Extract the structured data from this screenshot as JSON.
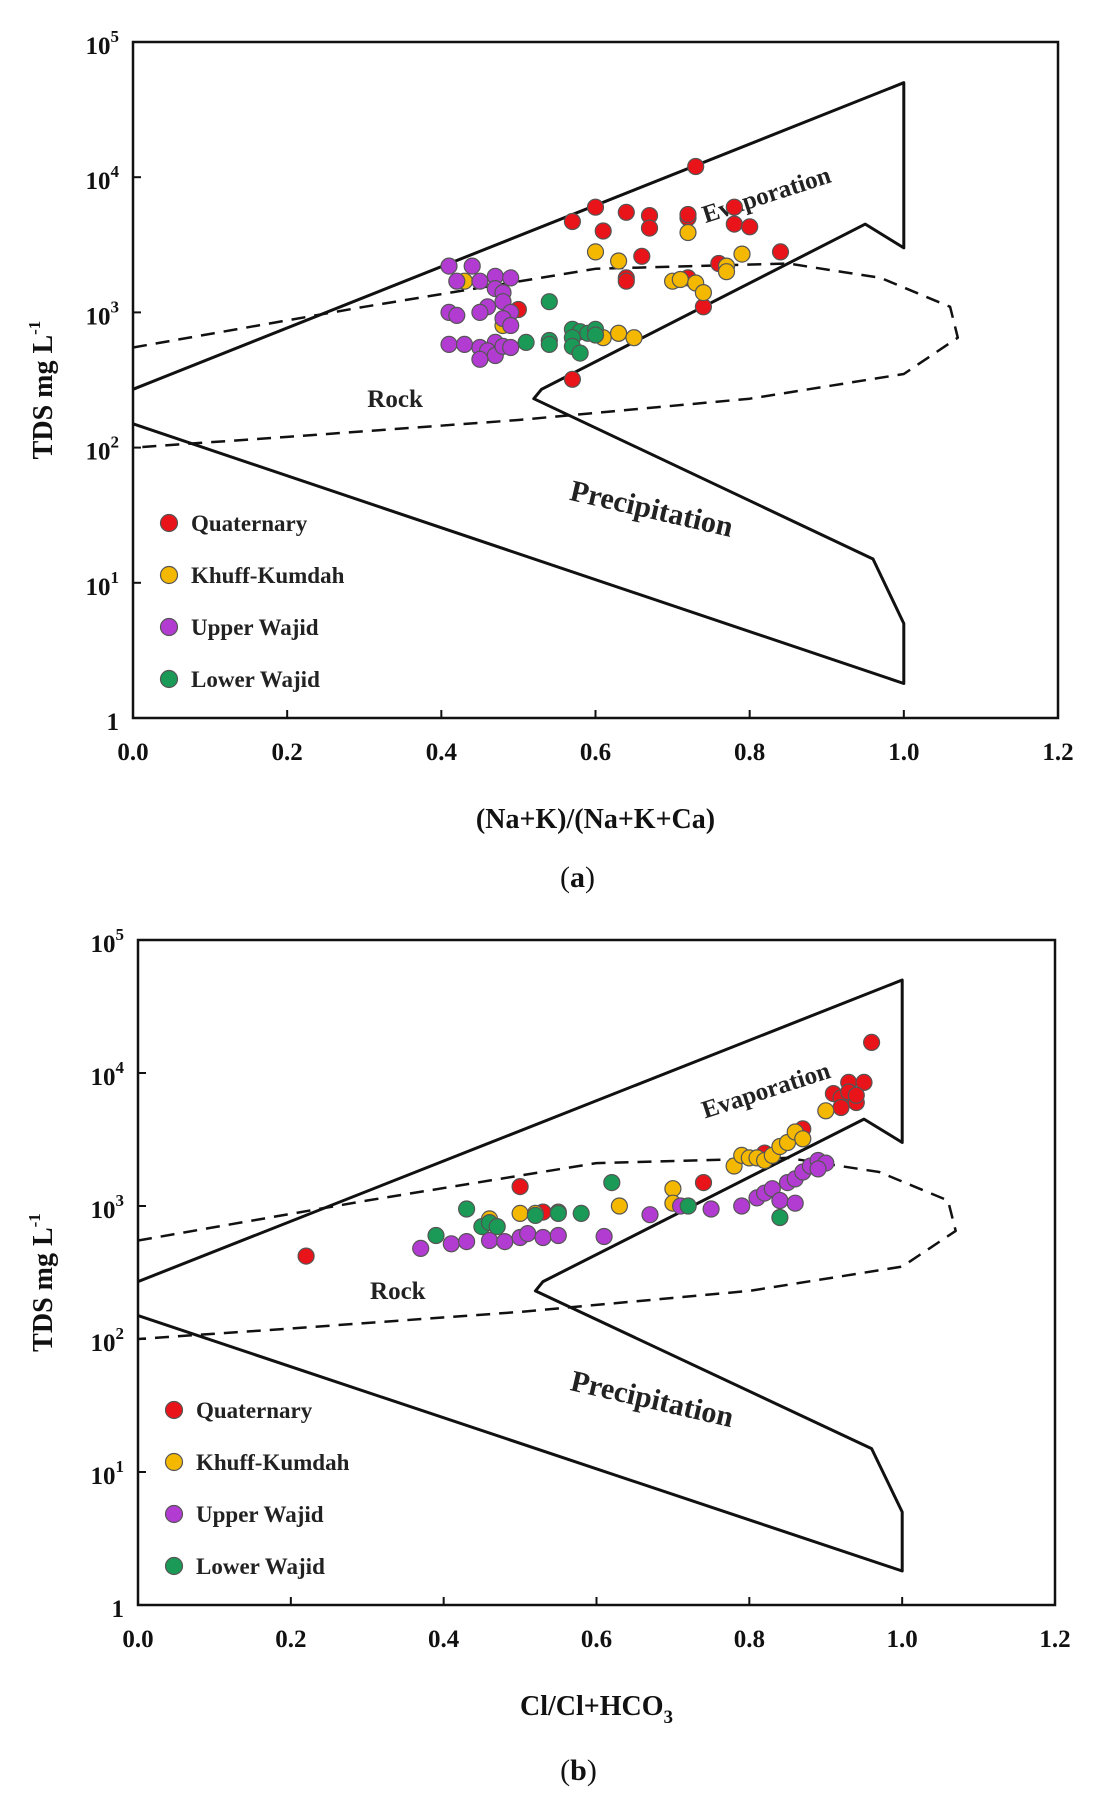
{
  "chart_data": [
    {
      "type": "scatter",
      "panel_label": "a",
      "xlabel": "(Na+K)/(Na+K+Ca)",
      "ylabel": "TDS mg L",
      "ylabel_sup": "-1",
      "xlim": [
        0,
        1.2
      ],
      "ylim": [
        1,
        100000
      ],
      "yscale": "log",
      "x_ticks": [
        "0.0",
        "0.2",
        "0.4",
        "0.6",
        "0.8",
        "1.0",
        "1.2"
      ],
      "y_ticks": [
        {
          "base": "1",
          "exp": ""
        },
        {
          "base": "10",
          "exp": "1"
        },
        {
          "base": "10",
          "exp": "2"
        },
        {
          "base": "10",
          "exp": "3"
        },
        {
          "base": "10",
          "exp": "4"
        },
        {
          "base": "10",
          "exp": "5"
        }
      ],
      "regions": {
        "evaporation": "Evaporation",
        "rock": "Rock",
        "precipitation": "Precipitation"
      },
      "boomerang": [
        [
          0,
          270
        ],
        [
          1.0,
          50000
        ],
        [
          1.0,
          3000
        ],
        [
          0.95,
          4500
        ],
        [
          0.53,
          270
        ],
        [
          0.52,
          230
        ],
        [
          0.96,
          15
        ],
        [
          1.0,
          5
        ],
        [
          1.0,
          1.8
        ],
        [
          0,
          150
        ]
      ],
      "rock_zone": [
        [
          0,
          550
        ],
        [
          0.3,
          1100
        ],
        [
          0.6,
          2100
        ],
        [
          0.85,
          2300
        ],
        [
          0.97,
          1800
        ],
        [
          1.06,
          1100
        ],
        [
          1.07,
          650
        ],
        [
          1.0,
          350
        ],
        [
          0.8,
          230
        ],
        [
          0.5,
          160
        ],
        [
          0.2,
          120
        ],
        [
          0,
          100
        ]
      ],
      "legend": [
        "Quaternary",
        "Khuff-Kumdah",
        "Upper Wajid",
        "Lower Wajid"
      ],
      "series": [
        {
          "name": "Quaternary",
          "color": "#e8141a",
          "points": [
            [
              0.73,
              12000
            ],
            [
              0.57,
              4700
            ],
            [
              0.6,
              6000
            ],
            [
              0.64,
              5500
            ],
            [
              0.61,
              4000
            ],
            [
              0.67,
              5200
            ],
            [
              0.67,
              4200
            ],
            [
              0.72,
              5000
            ],
            [
              0.72,
              5300
            ],
            [
              0.78,
              6000
            ],
            [
              0.78,
              4500
            ],
            [
              0.8,
              4300
            ],
            [
              0.84,
              2800
            ],
            [
              0.66,
              2600
            ],
            [
              0.64,
              1800
            ],
            [
              0.64,
              1700
            ],
            [
              0.76,
              2300
            ],
            [
              0.72,
              1800
            ],
            [
              0.74,
              1100
            ],
            [
              0.5,
              1050
            ],
            [
              0.63,
              700
            ],
            [
              0.57,
              320
            ]
          ]
        },
        {
          "name": "Khuff-Kumdah",
          "color": "#f5b800",
          "points": [
            [
              0.72,
              3900
            ],
            [
              0.6,
              2800
            ],
            [
              0.63,
              2400
            ],
            [
              0.79,
              2700
            ],
            [
              0.77,
              2200
            ],
            [
              0.77,
              2000
            ],
            [
              0.43,
              1700
            ],
            [
              0.7,
              1700
            ],
            [
              0.71,
              1750
            ],
            [
              0.73,
              1650
            ],
            [
              0.74,
              1400
            ],
            [
              0.48,
              800
            ],
            [
              0.61,
              650
            ],
            [
              0.63,
              700
            ],
            [
              0.65,
              650
            ]
          ]
        },
        {
          "name": "Upper Wajid",
          "color": "#b23cd2",
          "points": [
            [
              0.41,
              2200
            ],
            [
              0.44,
              2200
            ],
            [
              0.42,
              1700
            ],
            [
              0.45,
              1700
            ],
            [
              0.47,
              1850
            ],
            [
              0.49,
              1800
            ],
            [
              0.47,
              1500
            ],
            [
              0.48,
              1400
            ],
            [
              0.46,
              1100
            ],
            [
              0.45,
              1000
            ],
            [
              0.48,
              1200
            ],
            [
              0.49,
              1000
            ],
            [
              0.41,
              1000
            ],
            [
              0.42,
              950
            ],
            [
              0.48,
              900
            ],
            [
              0.49,
              800
            ],
            [
              0.41,
              580
            ],
            [
              0.43,
              580
            ],
            [
              0.45,
              550
            ],
            [
              0.47,
              600
            ],
            [
              0.46,
              520
            ],
            [
              0.47,
              480
            ],
            [
              0.48,
              560
            ],
            [
              0.49,
              550
            ],
            [
              0.45,
              450
            ]
          ]
        },
        {
          "name": "Lower Wajid",
          "color": "#1a9a56",
          "points": [
            [
              0.54,
              1200
            ],
            [
              0.51,
              600
            ],
            [
              0.54,
              620
            ],
            [
              0.54,
              580
            ],
            [
              0.57,
              750
            ],
            [
              0.58,
              720
            ],
            [
              0.57,
              650
            ],
            [
              0.59,
              700
            ],
            [
              0.6,
              750
            ],
            [
              0.6,
              680
            ],
            [
              0.57,
              560
            ],
            [
              0.58,
              500
            ]
          ]
        }
      ]
    },
    {
      "type": "scatter",
      "panel_label": "b",
      "xlabel": "Cl/Cl+HCO",
      "xlabel_sub": "3",
      "ylabel": "TDS mg L",
      "ylabel_sup": "-1",
      "xlim": [
        0,
        1.2
      ],
      "ylim": [
        1,
        100000
      ],
      "yscale": "log",
      "x_ticks": [
        "0.0",
        "0.2",
        "0.4",
        "0.6",
        "0.8",
        "1.0",
        "1.2"
      ],
      "y_ticks": [
        {
          "base": "1",
          "exp": ""
        },
        {
          "base": "10",
          "exp": "1"
        },
        {
          "base": "10",
          "exp": "2"
        },
        {
          "base": "10",
          "exp": "3"
        },
        {
          "base": "10",
          "exp": "4"
        },
        {
          "base": "10",
          "exp": "5"
        }
      ],
      "regions": {
        "evaporation": "Evaporation",
        "rock": "Rock",
        "precipitation": "Precipitation"
      },
      "boomerang": [
        [
          0,
          270
        ],
        [
          1.0,
          50000
        ],
        [
          1.0,
          3000
        ],
        [
          0.95,
          4500
        ],
        [
          0.53,
          270
        ],
        [
          0.52,
          230
        ],
        [
          0.96,
          15
        ],
        [
          1.0,
          5
        ],
        [
          1.0,
          1.8
        ],
        [
          0,
          150
        ]
      ],
      "rock_zone": [
        [
          0,
          550
        ],
        [
          0.3,
          1100
        ],
        [
          0.6,
          2100
        ],
        [
          0.85,
          2300
        ],
        [
          0.97,
          1800
        ],
        [
          1.06,
          1100
        ],
        [
          1.07,
          650
        ],
        [
          1.0,
          350
        ],
        [
          0.8,
          230
        ],
        [
          0.5,
          160
        ],
        [
          0.2,
          120
        ],
        [
          0,
          100
        ]
      ],
      "legend": [
        "Quaternary",
        "Khuff-Kumdah",
        "Upper Wajid",
        "Lower Wajid"
      ],
      "series": [
        {
          "name": "Quaternary",
          "color": "#e8141a",
          "points": [
            [
              0.22,
              420
            ],
            [
              0.5,
              1400
            ],
            [
              0.53,
              900
            ],
            [
              0.74,
              1500
            ],
            [
              0.82,
              2500
            ],
            [
              0.87,
              3800
            ],
            [
              0.91,
              7000
            ],
            [
              0.92,
              6500
            ],
            [
              0.93,
              8500
            ],
            [
              0.93,
              7200
            ],
            [
              0.94,
              6000
            ],
            [
              0.92,
              5500
            ],
            [
              0.95,
              8500
            ],
            [
              0.96,
              17000
            ],
            [
              0.94,
              6800
            ]
          ]
        },
        {
          "name": "Khuff-Kumdah",
          "color": "#f5b800",
          "points": [
            [
              0.46,
              800
            ],
            [
              0.5,
              880
            ],
            [
              0.52,
              880
            ],
            [
              0.55,
              900
            ],
            [
              0.63,
              1000
            ],
            [
              0.7,
              1350
            ],
            [
              0.7,
              1050
            ],
            [
              0.78,
              2000
            ],
            [
              0.79,
              2400
            ],
            [
              0.8,
              2300
            ],
            [
              0.81,
              2300
            ],
            [
              0.82,
              2200
            ],
            [
              0.83,
              2400
            ],
            [
              0.84,
              2800
            ],
            [
              0.85,
              3000
            ],
            [
              0.86,
              3600
            ],
            [
              0.87,
              3200
            ],
            [
              0.9,
              5200
            ]
          ]
        },
        {
          "name": "Upper Wajid",
          "color": "#b23cd2",
          "points": [
            [
              0.37,
              480
            ],
            [
              0.41,
              520
            ],
            [
              0.43,
              540
            ],
            [
              0.46,
              550
            ],
            [
              0.48,
              540
            ],
            [
              0.5,
              580
            ],
            [
              0.51,
              620
            ],
            [
              0.53,
              580
            ],
            [
              0.55,
              600
            ],
            [
              0.61,
              590
            ],
            [
              0.67,
              860
            ],
            [
              0.71,
              1000
            ],
            [
              0.75,
              950
            ],
            [
              0.79,
              1000
            ],
            [
              0.81,
              1150
            ],
            [
              0.82,
              1250
            ],
            [
              0.83,
              1350
            ],
            [
              0.84,
              1100
            ],
            [
              0.85,
              1500
            ],
            [
              0.86,
              1600
            ],
            [
              0.87,
              1800
            ],
            [
              0.88,
              2000
            ],
            [
              0.89,
              2200
            ],
            [
              0.9,
              2100
            ],
            [
              0.89,
              1900
            ],
            [
              0.86,
              1050
            ]
          ]
        },
        {
          "name": "Lower Wajid",
          "color": "#1a9a56",
          "points": [
            [
              0.39,
              600
            ],
            [
              0.43,
              950
            ],
            [
              0.45,
              700
            ],
            [
              0.46,
              750
            ],
            [
              0.47,
              700
            ],
            [
              0.52,
              850
            ],
            [
              0.55,
              880
            ],
            [
              0.58,
              880
            ],
            [
              0.62,
              1500
            ],
            [
              0.72,
              1000
            ],
            [
              0.84,
              820
            ]
          ]
        }
      ]
    }
  ]
}
